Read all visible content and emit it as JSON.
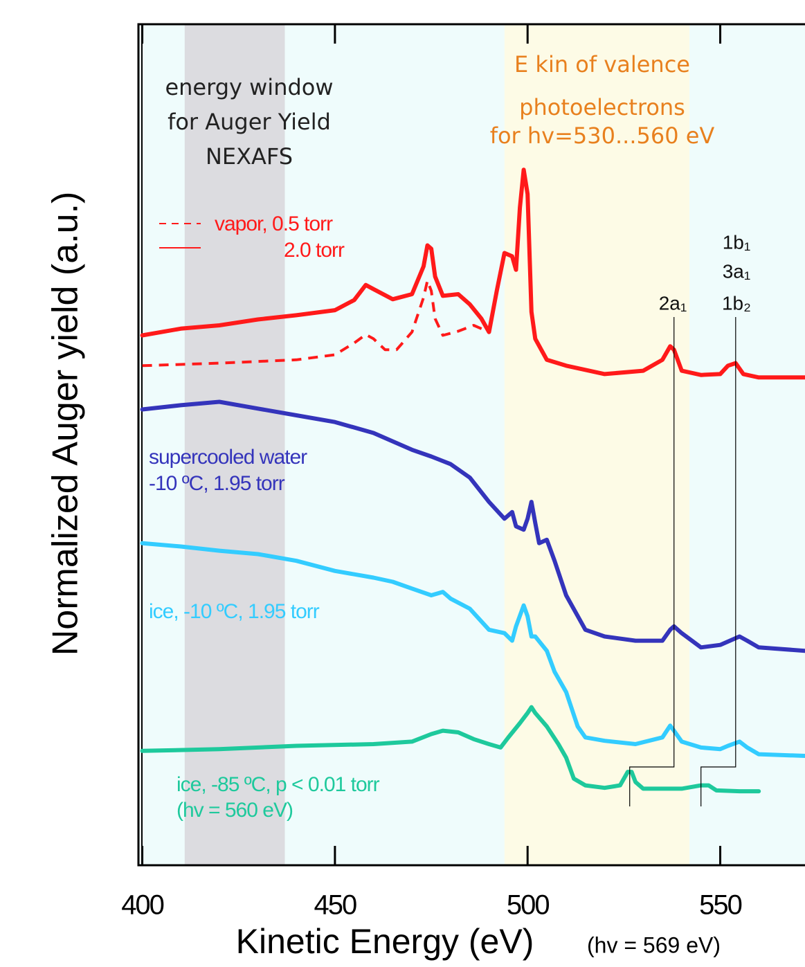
{
  "chart_data": {
    "type": "line",
    "y_label": "Normalized Auger yield (a.u.)",
    "x_label": "Kinetic Energy (eV)",
    "x_label_note": "(hv = 569 eV)",
    "xlim": [
      399,
      572
    ],
    "xticks": [
      400,
      450,
      500,
      550
    ],
    "ylim": [
      0,
      100
    ],
    "background": "#effcfc",
    "shaded_regions": [
      {
        "x": [
          411,
          437
        ],
        "color": "#dcdce0",
        "label": [
          "energy window",
          "for Auger Yield",
          "NEXAFS"
        ],
        "label_color": "#222222"
      },
      {
        "x": [
          494,
          542
        ],
        "color": "#fdfbe6",
        "label": [
          "E kin of valence",
          "photoelectrons",
          "for hv=530...560 eV"
        ],
        "label_color": "#e8801e"
      }
    ],
    "series": [
      {
        "name": [
          "vapor, 0.5 torr"
        ],
        "color": "#ff1a1a",
        "dashed": true,
        "x": [
          400,
          420,
          440,
          450,
          455,
          458,
          460,
          463,
          466,
          470,
          473,
          474,
          475,
          476,
          478,
          482,
          486,
          490
        ],
        "values": [
          59.4,
          59.7,
          60.1,
          60.7,
          62.1,
          63.1,
          62.6,
          61.3,
          61.3,
          63.4,
          67.5,
          69.5,
          68.3,
          65.0,
          63.0,
          63.5,
          64.2,
          63.4
        ]
      },
      {
        "name": [
          "2.0 torr"
        ],
        "color": "#ff1a1a",
        "dashed": false,
        "x": [
          400,
          410,
          420,
          430,
          440,
          450,
          455,
          458,
          460,
          465,
          470,
          473,
          474,
          475,
          476,
          478,
          482,
          485,
          488,
          490,
          492,
          494,
          496,
          497,
          498,
          499,
          500,
          501,
          502,
          505,
          510,
          520,
          530,
          535,
          537,
          538,
          540,
          545,
          550,
          552,
          554,
          556,
          560,
          572
        ],
        "values": [
          63.0,
          63.8,
          64.2,
          64.9,
          65.4,
          66.0,
          67.2,
          69.0,
          68.5,
          67.3,
          67.9,
          71.2,
          73.7,
          73.3,
          70.0,
          67.7,
          67.9,
          66.7,
          65.0,
          63.4,
          68.3,
          72.8,
          72.4,
          70.8,
          78.2,
          82.7,
          79.8,
          65.8,
          62.6,
          60.1,
          59.4,
          58.4,
          58.8,
          60.1,
          61.7,
          61.3,
          58.8,
          58.3,
          58.4,
          59.4,
          59.7,
          58.4,
          58.0,
          58.0
        ]
      },
      {
        "name": [
          "supercooled water",
          "-10 ºC, 1.95 torr"
        ],
        "color": "#3434bb",
        "dashed": false,
        "x": [
          400,
          410,
          420,
          430,
          440,
          450,
          460,
          470,
          475,
          480,
          485,
          490,
          494,
          496,
          497,
          499,
          500,
          501,
          502,
          503,
          505,
          507,
          510,
          515,
          520,
          528,
          535,
          537,
          538,
          540,
          545,
          550,
          555,
          557,
          560,
          572
        ],
        "values": [
          54.2,
          54.7,
          55.1,
          54.3,
          53.5,
          52.7,
          51.4,
          49.4,
          48.6,
          47.7,
          46.1,
          43.2,
          41.2,
          42.0,
          40.3,
          39.9,
          41.2,
          43.2,
          40.7,
          38.3,
          38.7,
          36.2,
          32.1,
          28.0,
          27.2,
          26.7,
          26.7,
          28.0,
          28.4,
          27.6,
          25.9,
          26.2,
          27.2,
          26.7,
          25.9,
          25.5
        ]
      },
      {
        "name": [
          "ice, -10 ºC, 1.95 torr"
        ],
        "color": "#33ccff",
        "dashed": false,
        "x": [
          400,
          410,
          420,
          430,
          440,
          450,
          460,
          465,
          470,
          475,
          478,
          480,
          485,
          490,
          494,
          496,
          497,
          499,
          500,
          501,
          502,
          505,
          507,
          510,
          513,
          515,
          520,
          528,
          535,
          537,
          538,
          540,
          545,
          550,
          552,
          555,
          557,
          560,
          572
        ],
        "values": [
          38.3,
          37.9,
          37.4,
          37.0,
          36.2,
          35.0,
          34.2,
          33.7,
          32.9,
          32.1,
          32.5,
          31.7,
          30.5,
          28.0,
          27.6,
          26.7,
          28.4,
          30.9,
          29.6,
          27.2,
          27.2,
          25.5,
          23.0,
          20.6,
          16.5,
          15.2,
          14.8,
          14.4,
          15.2,
          16.6,
          16.0,
          14.7,
          14.0,
          13.8,
          14.2,
          14.7,
          14.0,
          13.2,
          13.0
        ]
      },
      {
        "name": [
          "ice, -85 ºC, p < 0.01 torr",
          "(hv = 560 eV)"
        ],
        "color": "#1ec99c",
        "dashed": false,
        "x": [
          400,
          420,
          440,
          460,
          470,
          475,
          478,
          482,
          486,
          490,
          493,
          495,
          498,
          500,
          501,
          502,
          505,
          508,
          510,
          512,
          515,
          520,
          524,
          526,
          527,
          528,
          530,
          540,
          545,
          547,
          549,
          555,
          560
        ],
        "values": [
          13.6,
          13.8,
          14.2,
          14.4,
          14.7,
          15.6,
          16.0,
          15.8,
          15.0,
          14.4,
          14.0,
          15.2,
          16.9,
          18.1,
          18.8,
          18.1,
          16.5,
          14.4,
          12.8,
          10.3,
          9.5,
          9.2,
          9.5,
          11.1,
          11.1,
          9.9,
          9.1,
          9.1,
          9.5,
          9.5,
          8.9,
          8.8,
          8.8
        ]
      }
    ],
    "peak_markers": [
      {
        "label": [
          "2a₁"
        ],
        "x": 538,
        "x_shifted": 526.5
      },
      {
        "label": [
          "1b₁",
          "3a₁",
          "1b₂"
        ],
        "x": 554,
        "x_shifted": 545
      }
    ]
  }
}
